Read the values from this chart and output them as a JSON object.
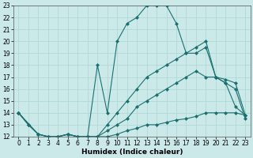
{
  "xlabel": "Humidex (Indice chaleur)",
  "background_color": "#cce9e9",
  "grid_color": "#b0d8d8",
  "line_color": "#1a7070",
  "xlim": [
    -0.5,
    23.5
  ],
  "ylim": [
    12,
    23
  ],
  "xticks": [
    0,
    1,
    2,
    3,
    4,
    5,
    6,
    7,
    8,
    9,
    10,
    11,
    12,
    13,
    14,
    15,
    16,
    17,
    18,
    19,
    20,
    21,
    22,
    23
  ],
  "yticks": [
    12,
    13,
    14,
    15,
    16,
    17,
    18,
    19,
    20,
    21,
    22,
    23
  ],
  "lines": [
    {
      "x": [
        0,
        1,
        2,
        3,
        4,
        5,
        6,
        7,
        8,
        9,
        10,
        11,
        12,
        13,
        14,
        15,
        16,
        17,
        18,
        19,
        20,
        21,
        22,
        23
      ],
      "y": [
        14,
        13,
        12.2,
        12,
        12,
        12.2,
        12,
        12,
        12,
        12,
        12.2,
        12.5,
        12.7,
        13,
        13,
        13.2,
        13.4,
        13.5,
        13.7,
        14,
        14,
        14,
        14,
        13.8
      ]
    },
    {
      "x": [
        0,
        1,
        2,
        3,
        4,
        5,
        6,
        7,
        8,
        9,
        10,
        11,
        12,
        13,
        14,
        15,
        16,
        17,
        18,
        19,
        20,
        21,
        22,
        23
      ],
      "y": [
        14,
        13,
        12.2,
        12,
        12,
        12.2,
        12,
        12,
        12,
        12.5,
        13,
        13.5,
        14.5,
        15,
        15.5,
        16,
        16.5,
        17,
        17.5,
        17,
        17,
        16.5,
        16,
        13.5
      ]
    },
    {
      "x": [
        0,
        2,
        3,
        4,
        5,
        6,
        7,
        8,
        9,
        10,
        11,
        12,
        13,
        14,
        15,
        16,
        17,
        18,
        19,
        20,
        21,
        22,
        23
      ],
      "y": [
        14,
        12.2,
        12,
        12,
        12.2,
        12,
        12,
        12,
        13,
        14,
        15,
        16,
        17,
        17.5,
        18,
        18.5,
        19,
        19,
        19.5,
        17,
        16.8,
        16.5,
        13.8
      ]
    },
    {
      "x": [
        0,
        1,
        2,
        3,
        4,
        5,
        6,
        7,
        8,
        9,
        10,
        11,
        12,
        13,
        14,
        15,
        16,
        17,
        18,
        19,
        20,
        21,
        22,
        23
      ],
      "y": [
        14,
        13,
        12.2,
        12,
        12,
        12.2,
        12,
        12,
        18,
        14,
        20,
        21.5,
        22,
        23,
        23,
        23,
        21.5,
        19,
        19.5,
        20,
        17,
        16.5,
        14.5,
        13.8
      ]
    }
  ],
  "marker": "D",
  "markersize": 2.0,
  "linewidth": 0.8,
  "tick_fontsize": 5.5,
  "xlabel_fontsize": 6.5
}
